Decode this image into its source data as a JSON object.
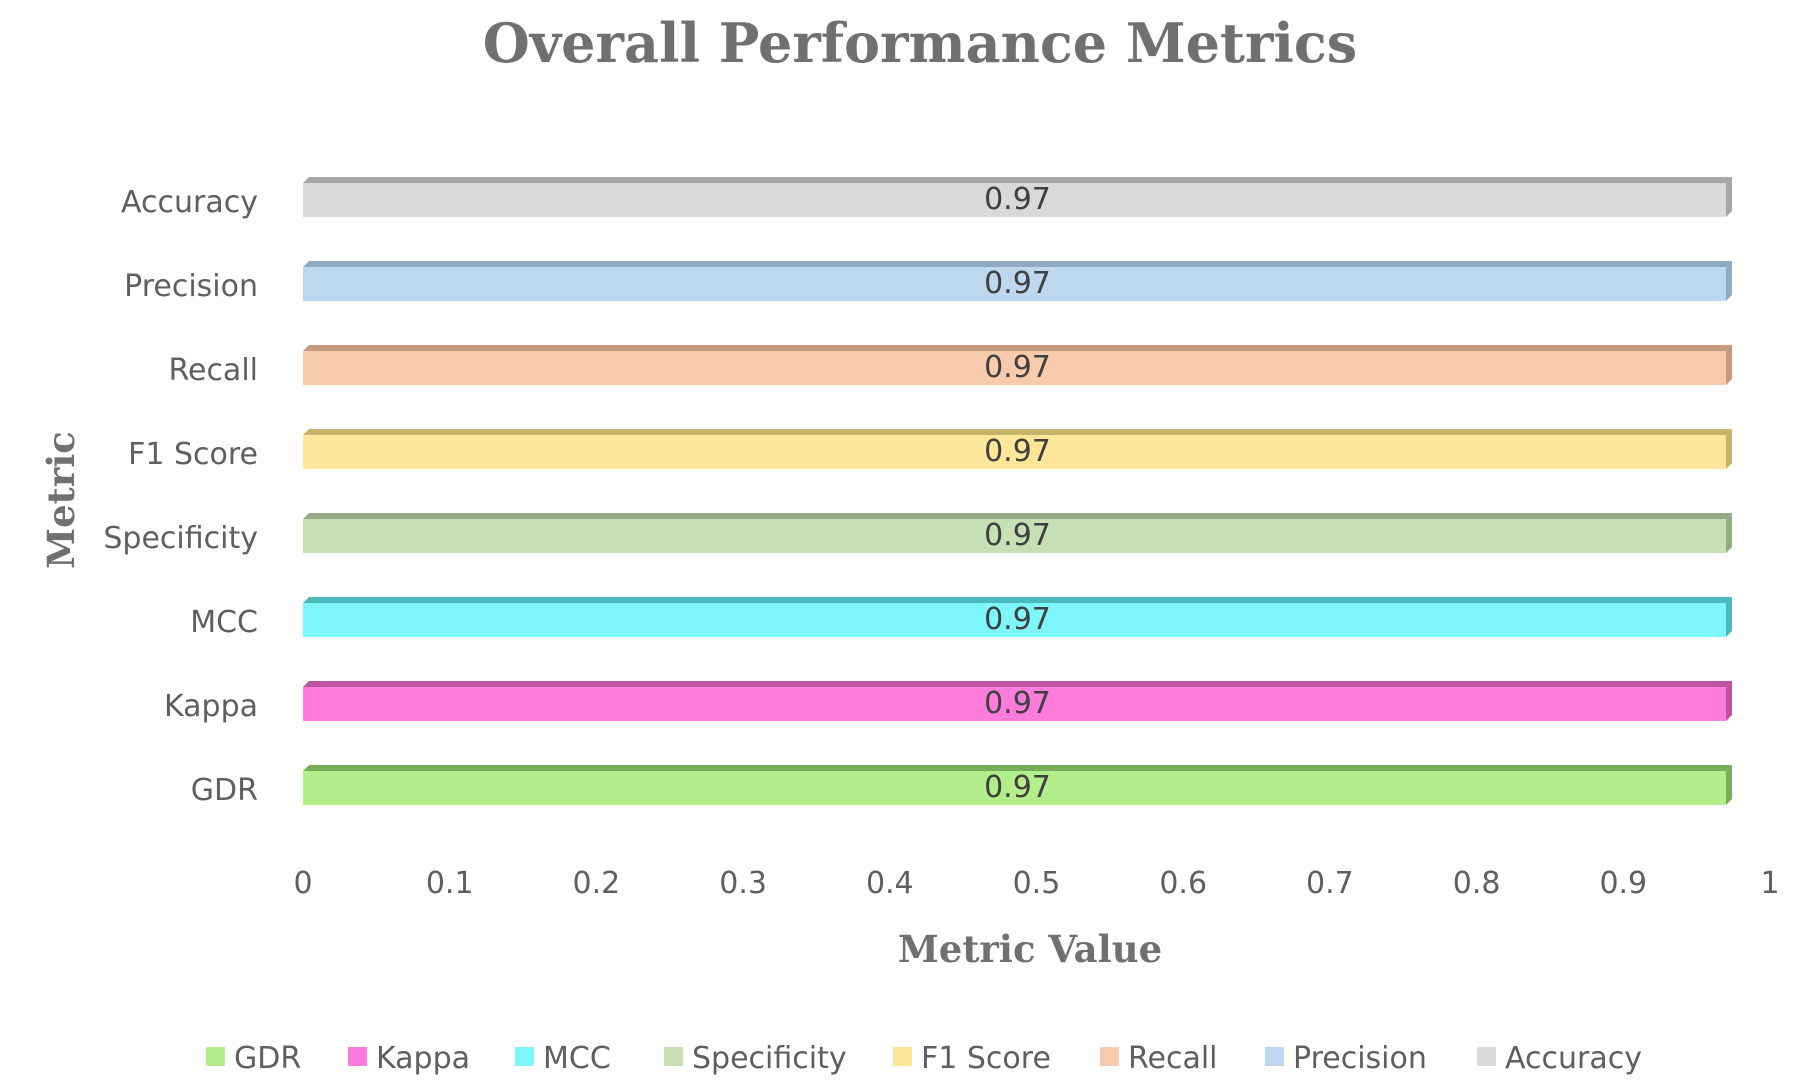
{
  "chart_data": {
    "type": "bar",
    "orientation": "horizontal",
    "title": "Overall Performance Metrics",
    "xlabel": "Metric Value",
    "ylabel": "Metric",
    "xlim": [
      0,
      1
    ],
    "xticks": [
      "0",
      "0.1",
      "0.2",
      "0.3",
      "0.4",
      "0.5",
      "0.6",
      "0.7",
      "0.8",
      "0.9",
      "1"
    ],
    "grid": false,
    "legend_position": "bottom",
    "categories": [
      "Accuracy",
      "Precision",
      "Recall",
      "F1 Score",
      "Specificity",
      "MCC",
      "Kappa",
      "GDR"
    ],
    "series": [
      {
        "name": "Accuracy",
        "category": "Accuracy",
        "value": 0.97,
        "label": "0.97",
        "color": "#d9d9d9",
        "shade": "#a6a6a6"
      },
      {
        "name": "Precision",
        "category": "Precision",
        "value": 0.97,
        "label": "0.97",
        "color": "#bdd7ee",
        "shade": "#8ea9c1"
      },
      {
        "name": "Recall",
        "category": "Recall",
        "value": 0.97,
        "label": "0.97",
        "color": "#f8cbad",
        "shade": "#c69a80"
      },
      {
        "name": "F1 Score",
        "category": "F1 Score",
        "value": 0.97,
        "label": "0.97",
        "color": "#ffe699",
        "shade": "#c9b36a"
      },
      {
        "name": "Specificity",
        "category": "Specificity",
        "value": 0.97,
        "label": "0.97",
        "color": "#c6e0b4",
        "shade": "#94ab86"
      },
      {
        "name": "MCC",
        "category": "MCC",
        "value": 0.97,
        "label": "0.97",
        "color": "#7ef6fd",
        "shade": "#4bb8be"
      },
      {
        "name": "Kappa",
        "category": "Kappa",
        "value": 0.97,
        "label": "0.97",
        "color": "#ff7bdc",
        "shade": "#be53a3"
      },
      {
        "name": "GDR",
        "category": "GDR",
        "value": 0.97,
        "label": "0.97",
        "color": "#b2ee8a",
        "shade": "#78ae5a"
      }
    ],
    "legend_order": [
      "GDR",
      "Kappa",
      "MCC",
      "Specificity",
      "F1 Score",
      "Recall",
      "Precision",
      "Accuracy"
    ]
  }
}
